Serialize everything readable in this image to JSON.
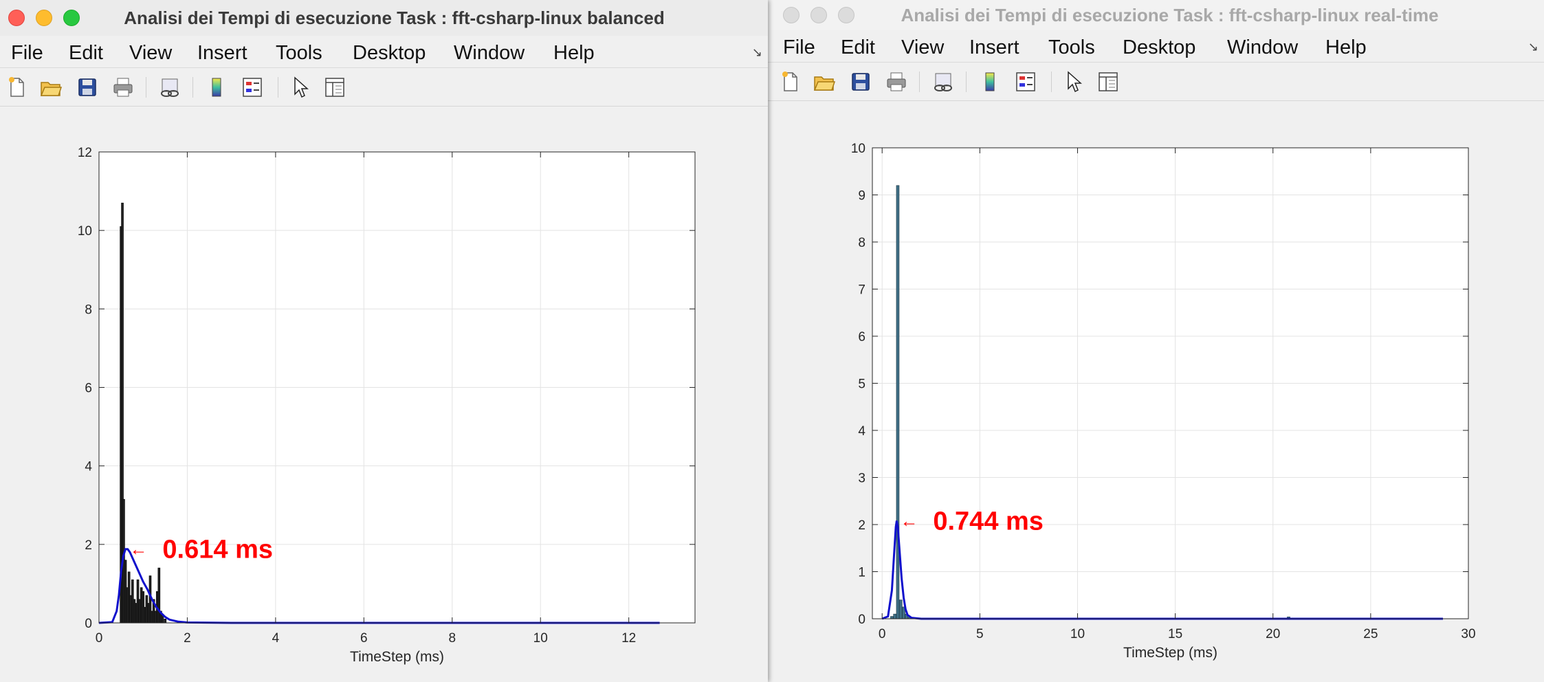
{
  "windows": [
    {
      "id": "A",
      "title": "Analisi dei Tempi di esecuzione Task : fft-csharp-linux balanced",
      "active": true,
      "menu": [
        "File",
        "Edit",
        "View",
        "Insert",
        "Tools",
        "Desktop",
        "Window",
        "Help"
      ],
      "toolbar_icons": [
        "new-figure-icon",
        "open-file-icon",
        "save-icon",
        "print-icon",
        "link-plot-icon",
        "colorbar-icon",
        "legend-icon",
        "pointer-icon",
        "property-inspector-icon"
      ]
    },
    {
      "id": "B",
      "title": "Analisi dei Tempi di esecuzione Task : fft-csharp-linux real-time",
      "active": false,
      "menu": [
        "File",
        "Edit",
        "View",
        "Insert",
        "Tools",
        "Desktop",
        "Window",
        "Help"
      ],
      "toolbar_icons": [
        "new-figure-icon",
        "open-file-icon",
        "save-icon",
        "print-icon",
        "link-plot-icon",
        "colorbar-icon",
        "legend-icon",
        "pointer-icon",
        "property-inspector-icon"
      ]
    }
  ],
  "colors": {
    "accent_red": "#ff0000",
    "curve_blue": "#1010cc",
    "bar_dark": "#222222",
    "bar_teal": "#3f6f86"
  },
  "chart_data": [
    {
      "type": "bar",
      "overlay": "line",
      "title": "",
      "xlabel": "TimeStep (ms)",
      "ylabel": "",
      "xlim": [
        0,
        13.5
      ],
      "ylim": [
        0,
        12
      ],
      "xticks": [
        0,
        2,
        4,
        6,
        8,
        10,
        12
      ],
      "yticks": [
        0,
        2,
        4,
        6,
        8,
        10,
        12
      ],
      "grid": true,
      "bar_color": "#222222",
      "bars": {
        "x": [
          0.5,
          0.53,
          0.56,
          0.6,
          0.64,
          0.68,
          0.72,
          0.76,
          0.8,
          0.84,
          0.88,
          0.92,
          0.96,
          1.0,
          1.04,
          1.08,
          1.12,
          1.16,
          1.2,
          1.24,
          1.28,
          1.32,
          1.36,
          1.4,
          1.44,
          1.5
        ],
        "values": [
          10.1,
          10.7,
          3.15,
          1.6,
          0.9,
          1.3,
          0.7,
          1.1,
          0.6,
          0.5,
          1.1,
          0.6,
          0.9,
          0.8,
          0.4,
          0.7,
          0.5,
          1.2,
          0.3,
          0.6,
          0.3,
          0.8,
          1.4,
          0.3,
          0.2,
          0.1
        ]
      },
      "curve": {
        "name": "density",
        "x": [
          0.0,
          0.3,
          0.4,
          0.45,
          0.5,
          0.55,
          0.6,
          0.65,
          0.7,
          0.8,
          0.9,
          1.0,
          1.1,
          1.2,
          1.3,
          1.4,
          1.5,
          1.6,
          1.8,
          2.0,
          3.0,
          6.0,
          9.0,
          12.7
        ],
        "values": [
          0.0,
          0.02,
          0.3,
          0.7,
          1.3,
          1.7,
          1.88,
          1.88,
          1.8,
          1.55,
          1.3,
          1.05,
          0.85,
          0.6,
          0.4,
          0.26,
          0.15,
          0.08,
          0.03,
          0.01,
          0.0,
          0.0,
          0.0,
          0.0
        ]
      },
      "annotation": {
        "text": "0.614 ms",
        "arrow": "←",
        "x": 0.614,
        "y": 1.88
      }
    },
    {
      "type": "bar",
      "overlay": "line",
      "title": "",
      "xlabel": "TimeStep (ms)",
      "ylabel": "",
      "xlim": [
        -0.5,
        30
      ],
      "ylim": [
        0,
        10
      ],
      "xticks": [
        0,
        5,
        10,
        15,
        20,
        25,
        30
      ],
      "yticks": [
        0,
        1,
        2,
        3,
        4,
        5,
        6,
        7,
        8,
        9,
        10
      ],
      "grid": true,
      "bar_color": "#3f6f86",
      "bars": {
        "x": [
          0.5,
          0.65,
          0.8,
          0.95,
          1.1,
          1.25,
          1.4,
          20.8
        ],
        "values": [
          0.05,
          0.1,
          9.2,
          0.4,
          0.25,
          0.1,
          0.03,
          0.04
        ]
      },
      "curve": {
        "name": "density",
        "x": [
          0.0,
          0.3,
          0.5,
          0.6,
          0.7,
          0.744,
          0.8,
          0.9,
          1.0,
          1.1,
          1.2,
          1.3,
          1.5,
          2.0,
          5.0,
          15.0,
          28.7
        ],
        "values": [
          0.0,
          0.05,
          0.6,
          1.3,
          1.95,
          2.08,
          1.95,
          1.4,
          0.85,
          0.45,
          0.2,
          0.08,
          0.02,
          0.0,
          0.0,
          0.0,
          0.0
        ]
      },
      "annotation": {
        "text": "0.744 ms",
        "arrow": "←",
        "x": 0.744,
        "y": 2.08
      }
    }
  ]
}
